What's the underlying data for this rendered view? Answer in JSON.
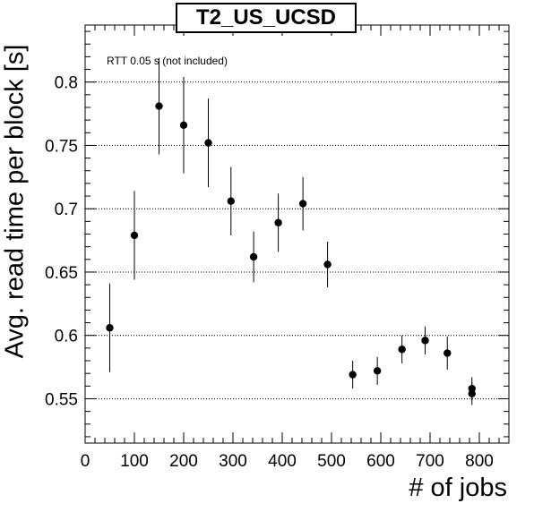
{
  "chart_data": {
    "type": "scatter",
    "title": "T2_US_UCSD",
    "annotation": "RTT 0.05 s (not included)",
    "xlabel": "# of jobs",
    "ylabel": "Avg. read time per block [s]",
    "xlim": [
      0,
      860
    ],
    "ylim": [
      0.515,
      0.845
    ],
    "xticks": [
      0,
      100,
      200,
      300,
      400,
      500,
      600,
      700,
      800
    ],
    "yticks": [
      0.55,
      0.6,
      0.65,
      0.7,
      0.75,
      0.8
    ],
    "ytick_labels": [
      "0.55",
      "0.6",
      "0.65",
      "0.7",
      "0.75",
      "0.8"
    ],
    "grid": "horizontal dotted",
    "points": [
      {
        "x": 50,
        "y": 0.606,
        "err": 0.035
      },
      {
        "x": 100,
        "y": 0.679,
        "err": 0.035
      },
      {
        "x": 150,
        "y": 0.781,
        "err": 0.038
      },
      {
        "x": 200,
        "y": 0.766,
        "err": 0.038
      },
      {
        "x": 250,
        "y": 0.752,
        "err": 0.035
      },
      {
        "x": 296,
        "y": 0.706,
        "err": 0.027
      },
      {
        "x": 342,
        "y": 0.662,
        "err": 0.02
      },
      {
        "x": 392,
        "y": 0.689,
        "err": 0.023
      },
      {
        "x": 442,
        "y": 0.704,
        "err": 0.021
      },
      {
        "x": 492,
        "y": 0.656,
        "err": 0.018
      },
      {
        "x": 543,
        "y": 0.569,
        "err": 0.011
      },
      {
        "x": 593,
        "y": 0.572,
        "err": 0.011
      },
      {
        "x": 643,
        "y": 0.589,
        "err": 0.011
      },
      {
        "x": 690,
        "y": 0.596,
        "err": 0.011
      },
      {
        "x": 735,
        "y": 0.586,
        "err": 0.013
      },
      {
        "x": 785,
        "y": 0.558,
        "err": 0.009
      },
      {
        "x": 785,
        "y": 0.554,
        "err": 0.009
      }
    ]
  }
}
